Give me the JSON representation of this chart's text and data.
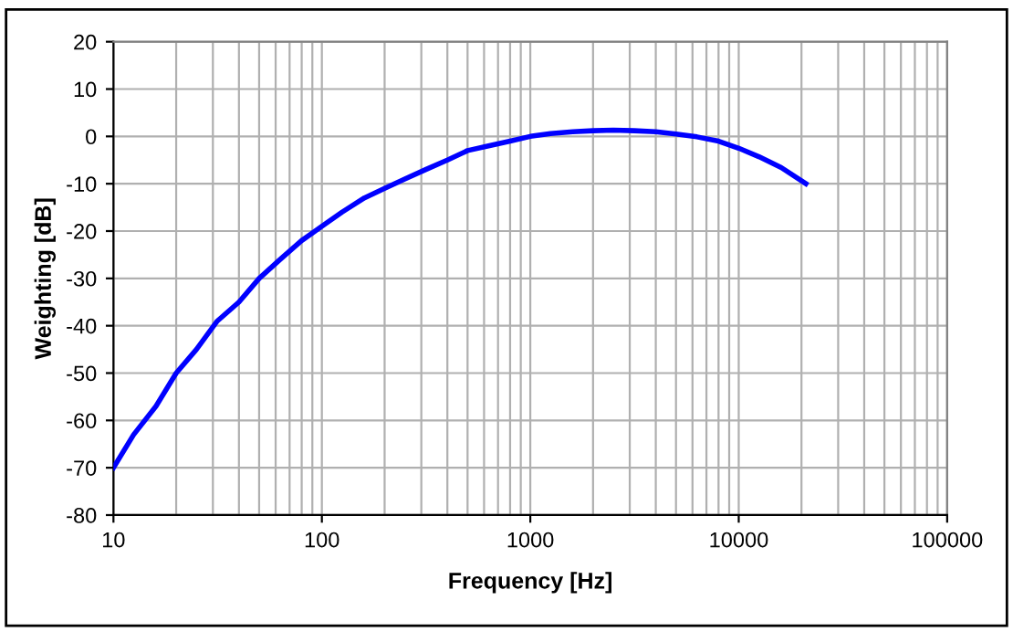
{
  "chart_data": {
    "type": "line",
    "xlabel": "Frequency [Hz]",
    "ylabel": "Weighting [dB]",
    "log": "x",
    "xlim": [
      10,
      100000
    ],
    "xticks": [
      10,
      100,
      1000,
      10000,
      100000
    ],
    "ylim": [
      -80,
      20
    ],
    "yticks": [
      -80,
      -70,
      -60,
      -50,
      -40,
      -30,
      -20,
      -10,
      0,
      10,
      20
    ],
    "grid": true,
    "marker": "none",
    "line_style": "solid",
    "series": [
      {
        "color": "#0000ff",
        "x": [
          10,
          12.5,
          16,
          20,
          25,
          31.5,
          40,
          50,
          63,
          80,
          100,
          125,
          160,
          200,
          250,
          315,
          400,
          500,
          630,
          800,
          1000,
          1250,
          1600,
          2000,
          2500,
          3150,
          4000,
          5000,
          6300,
          8000,
          10000,
          12500,
          16000,
          21000
        ],
        "values": [
          -70,
          -63,
          -57,
          -50,
          -45,
          -39,
          -35,
          -30,
          -26,
          -22,
          -19,
          -16,
          -13,
          -11,
          -9,
          -7,
          -5,
          -3,
          -2,
          -1,
          0,
          0.6,
          1,
          1.2,
          1.3,
          1.2,
          1,
          0.5,
          -0.1,
          -1,
          -2.5,
          -4.3,
          -6.6,
          -10
        ]
      }
    ]
  }
}
